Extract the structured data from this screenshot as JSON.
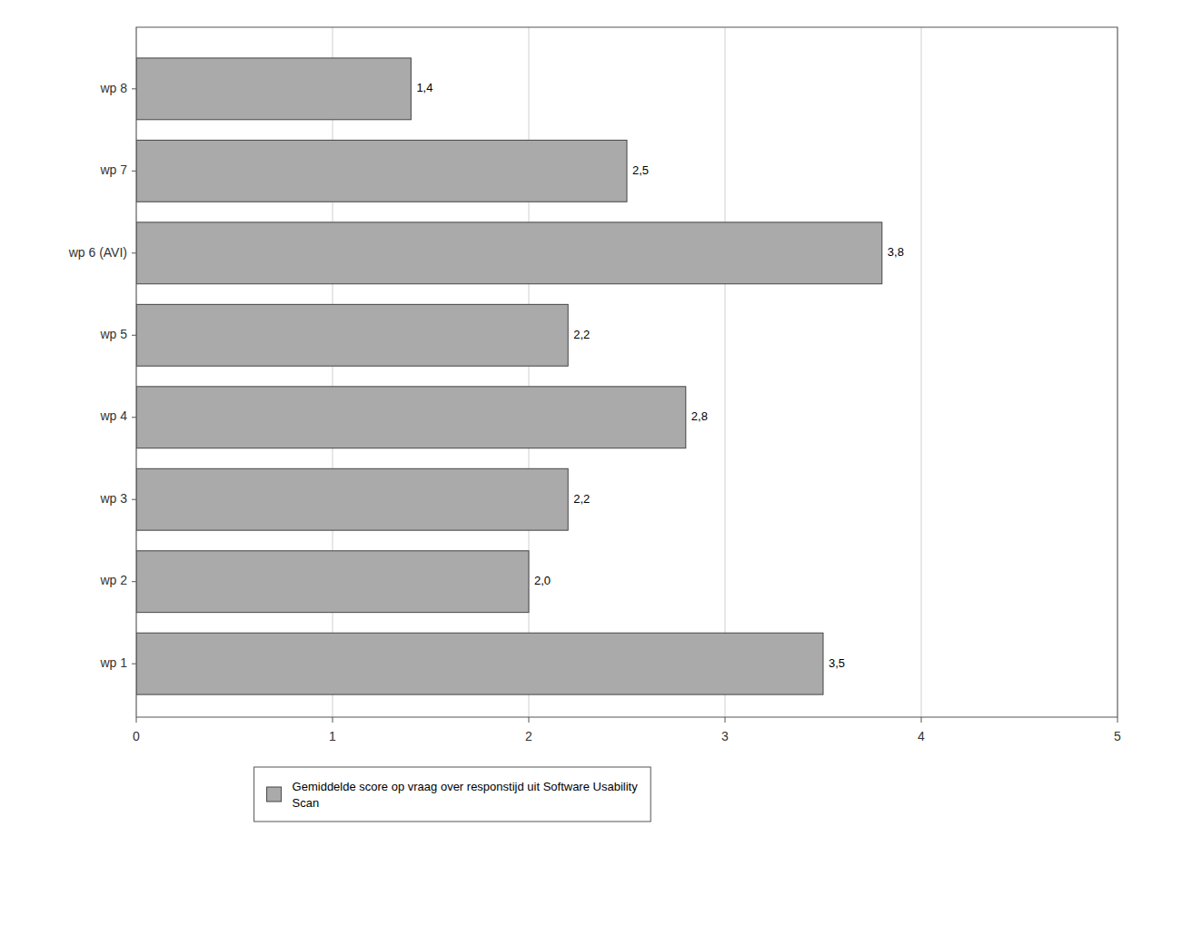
{
  "chart_data": {
    "type": "bar",
    "orientation": "horizontal",
    "categories": [
      "wp 1",
      "wp 2",
      "wp 3",
      "wp 4",
      "wp 5",
      "wp 6 (AVI)",
      "wp 7",
      "wp 8"
    ],
    "series": [
      {
        "name": "Gemiddelde score op vraag over responstijd uit Software Usability\nScan",
        "color": "#aaaaaa",
        "values": [
          3.5,
          2.0,
          2.2,
          2.8,
          2.2,
          3.8,
          2.5,
          1.4
        ],
        "value_labels": [
          "3,5",
          "2,0",
          "2,2",
          "2,8",
          "2,2",
          "3,8",
          "2,5",
          "1,4"
        ]
      }
    ],
    "xlim": [
      0,
      5
    ],
    "xticks": [
      0,
      1,
      2,
      3,
      4,
      5
    ],
    "grid": true,
    "data_labels": true,
    "legend": "bottom"
  }
}
